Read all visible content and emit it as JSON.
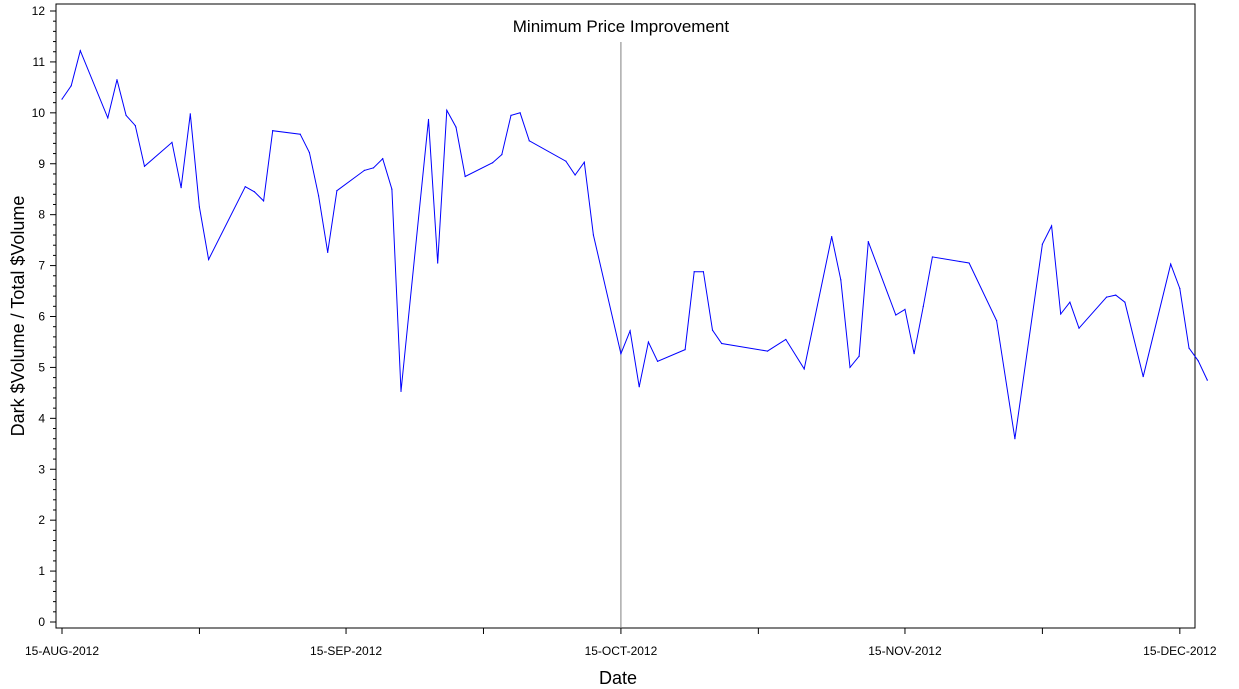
{
  "chart_data": {
    "type": "line",
    "title": "",
    "xlabel": "Date",
    "ylabel": "Dark $Volume / Total $Volume",
    "xlim": [
      "2012-08-15",
      "2012-12-16"
    ],
    "ylim": [
      0,
      12
    ],
    "x_ticks": [
      {
        "date": "2012-08-15",
        "label": "15-AUG-2012"
      },
      {
        "date": "2012-08-30",
        "label": ""
      },
      {
        "date": "2012-09-15",
        "label": "15-SEP-2012"
      },
      {
        "date": "2012-09-30",
        "label": ""
      },
      {
        "date": "2012-10-15",
        "label": "15-OCT-2012"
      },
      {
        "date": "2012-10-30",
        "label": ""
      },
      {
        "date": "2012-11-15",
        "label": "15-NOV-2012"
      },
      {
        "date": "2012-11-30",
        "label": ""
      },
      {
        "date": "2012-12-15",
        "label": "15-DEC-2012"
      }
    ],
    "y_ticks": [
      {
        "value": 0,
        "label": "0"
      },
      {
        "value": 1,
        "label": "1"
      },
      {
        "value": 2,
        "label": "2"
      },
      {
        "value": 3,
        "label": "3"
      },
      {
        "value": 4,
        "label": "4"
      },
      {
        "value": 5,
        "label": "5"
      },
      {
        "value": 6,
        "label": "6"
      },
      {
        "value": 7,
        "label": "7"
      },
      {
        "value": 8,
        "label": "8"
      },
      {
        "value": 9,
        "label": "9"
      },
      {
        "value": 10,
        "label": "10"
      },
      {
        "value": 11,
        "label": "11"
      },
      {
        "value": 12,
        "label": "12"
      }
    ],
    "grid": false,
    "line_color": "#0000ff",
    "reference_line": {
      "date": "2012-10-15",
      "label": "Minimum Price Improvement",
      "color": "#808080"
    },
    "series": [
      {
        "points": [
          [
            "2012-08-15",
            10.27
          ],
          [
            "2012-08-16",
            10.53
          ],
          [
            "2012-08-17",
            11.22
          ],
          [
            "2012-08-20",
            9.9
          ],
          [
            "2012-08-21",
            10.65
          ],
          [
            "2012-08-22",
            9.95
          ],
          [
            "2012-08-23",
            9.75
          ],
          [
            "2012-08-24",
            8.95
          ],
          [
            "2012-08-27",
            9.42
          ],
          [
            "2012-08-28",
            8.53
          ],
          [
            "2012-08-29",
            9.98
          ],
          [
            "2012-08-30",
            8.15
          ],
          [
            "2012-08-31",
            7.12
          ],
          [
            "2012-09-04",
            8.55
          ],
          [
            "2012-09-05",
            8.45
          ],
          [
            "2012-09-06",
            8.27
          ],
          [
            "2012-09-07",
            9.65
          ],
          [
            "2012-09-10",
            9.58
          ],
          [
            "2012-09-11",
            9.22
          ],
          [
            "2012-09-12",
            8.37
          ],
          [
            "2012-09-13",
            7.26
          ],
          [
            "2012-09-14",
            8.47
          ],
          [
            "2012-09-17",
            8.87
          ],
          [
            "2012-09-18",
            8.92
          ],
          [
            "2012-09-19",
            9.1
          ],
          [
            "2012-09-20",
            8.5
          ],
          [
            "2012-09-21",
            4.53
          ],
          [
            "2012-09-24",
            9.87
          ],
          [
            "2012-09-25",
            7.05
          ],
          [
            "2012-09-26",
            10.05
          ],
          [
            "2012-09-27",
            9.72
          ],
          [
            "2012-09-28",
            8.75
          ],
          [
            "2012-10-01",
            9.02
          ],
          [
            "2012-10-02",
            9.18
          ],
          [
            "2012-10-03",
            9.95
          ],
          [
            "2012-10-04",
            10.0
          ],
          [
            "2012-10-05",
            9.45
          ],
          [
            "2012-10-09",
            9.05
          ],
          [
            "2012-10-10",
            8.78
          ],
          [
            "2012-10-11",
            9.03
          ],
          [
            "2012-10-12",
            7.6
          ],
          [
            "2012-10-15",
            5.27
          ],
          [
            "2012-10-16",
            5.72
          ],
          [
            "2012-10-17",
            4.62
          ],
          [
            "2012-10-18",
            5.5
          ],
          [
            "2012-10-19",
            5.12
          ],
          [
            "2012-10-22",
            5.35
          ],
          [
            "2012-10-23",
            6.88
          ],
          [
            "2012-10-24",
            6.88
          ],
          [
            "2012-10-25",
            5.73
          ],
          [
            "2012-10-26",
            5.47
          ],
          [
            "2012-10-31",
            5.32
          ],
          [
            "2012-11-02",
            5.55
          ],
          [
            "2012-11-04",
            4.97
          ],
          [
            "2012-11-07",
            7.57
          ],
          [
            "2012-11-08",
            6.72
          ],
          [
            "2012-11-09",
            5.0
          ],
          [
            "2012-11-10",
            5.22
          ],
          [
            "2012-11-11",
            7.47
          ],
          [
            "2012-11-14",
            6.03
          ],
          [
            "2012-11-15",
            6.14
          ],
          [
            "2012-11-16",
            5.27
          ],
          [
            "2012-11-17",
            6.2
          ],
          [
            "2012-11-18",
            7.17
          ],
          [
            "2012-11-21",
            7.08
          ],
          [
            "2012-11-22",
            7.05
          ],
          [
            "2012-11-25",
            5.92
          ],
          [
            "2012-11-27",
            3.6
          ],
          [
            "2012-11-30",
            7.42
          ],
          [
            "2012-12-01",
            7.78
          ],
          [
            "2012-12-02",
            6.05
          ],
          [
            "2012-12-03",
            6.28
          ],
          [
            "2012-12-04",
            5.77
          ],
          [
            "2012-12-07",
            6.38
          ],
          [
            "2012-12-08",
            6.42
          ],
          [
            "2012-12-09",
            6.28
          ],
          [
            "2012-12-11",
            4.82
          ],
          [
            "2012-12-14",
            7.03
          ],
          [
            "2012-12-15",
            6.55
          ],
          [
            "2012-12-16",
            5.38
          ],
          [
            "2012-12-17",
            5.13
          ],
          [
            "2012-12-18",
            4.75
          ]
        ]
      }
    ]
  }
}
